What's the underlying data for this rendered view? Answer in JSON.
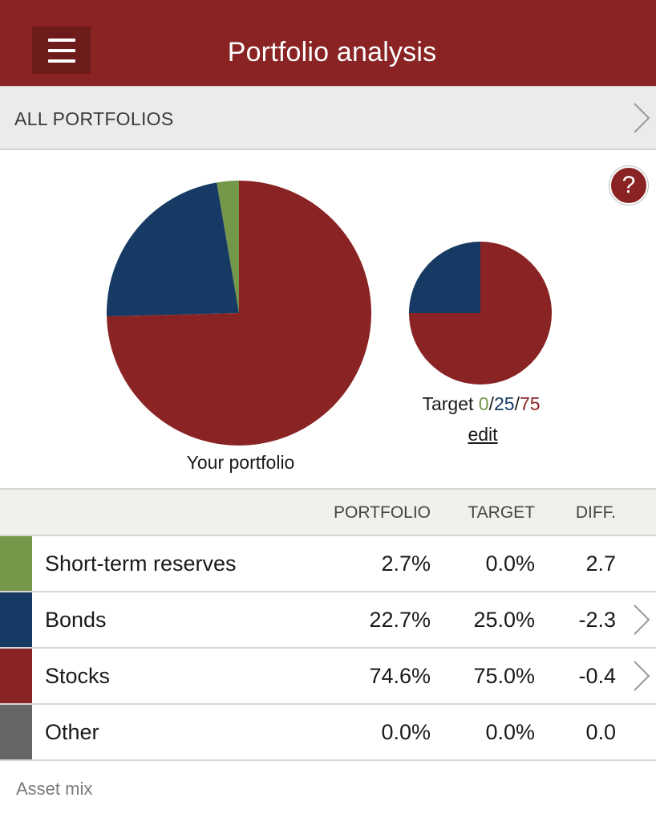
{
  "header": {
    "title": "Portfolio analysis",
    "menu_icon": "hamburger-menu-icon"
  },
  "subnav": {
    "label": "ALL PORTFOLIOS",
    "icon": "chevron-right-icon"
  },
  "help": {
    "label": "?",
    "icon": "help-icon"
  },
  "colors": {
    "short_term": "#75974a",
    "bonds": "#163a64",
    "stocks": "#8a2324",
    "other": "#666666",
    "brand": "#8a2324"
  },
  "charts": {
    "your_label": "Your portfolio",
    "target_prefix": "Target ",
    "target_values": [
      "0",
      "25",
      "75"
    ],
    "target_sep": "/",
    "edit_label": "edit"
  },
  "chart_data": [
    {
      "type": "pie",
      "title": "Your portfolio",
      "categories": [
        "Short-term reserves",
        "Bonds",
        "Stocks",
        "Other"
      ],
      "values": [
        2.7,
        22.7,
        74.6,
        0.0
      ]
    },
    {
      "type": "pie",
      "title": "Target 0/25/75",
      "categories": [
        "Short-term reserves",
        "Bonds",
        "Stocks",
        "Other"
      ],
      "values": [
        0.0,
        25.0,
        75.0,
        0.0
      ]
    }
  ],
  "table": {
    "headers": {
      "portfolio": "PORTFOLIO",
      "target": "TARGET",
      "diff": "DIFF."
    },
    "rows": [
      {
        "name": "Short-term reserves",
        "portfolio": "2.7%",
        "target": "0.0%",
        "diff": "2.7",
        "color": "#75974a",
        "has_chevron": false
      },
      {
        "name": "Bonds",
        "portfolio": "22.7%",
        "target": "25.0%",
        "diff": "-2.3",
        "color": "#163a64",
        "has_chevron": true
      },
      {
        "name": "Stocks",
        "portfolio": "74.6%",
        "target": "75.0%",
        "diff": "-0.4",
        "color": "#8a2324",
        "has_chevron": true
      },
      {
        "name": "Other",
        "portfolio": "0.0%",
        "target": "0.0%",
        "diff": "0.0",
        "color": "#666666",
        "has_chevron": false
      }
    ]
  },
  "footer": {
    "label": "Asset mix"
  }
}
